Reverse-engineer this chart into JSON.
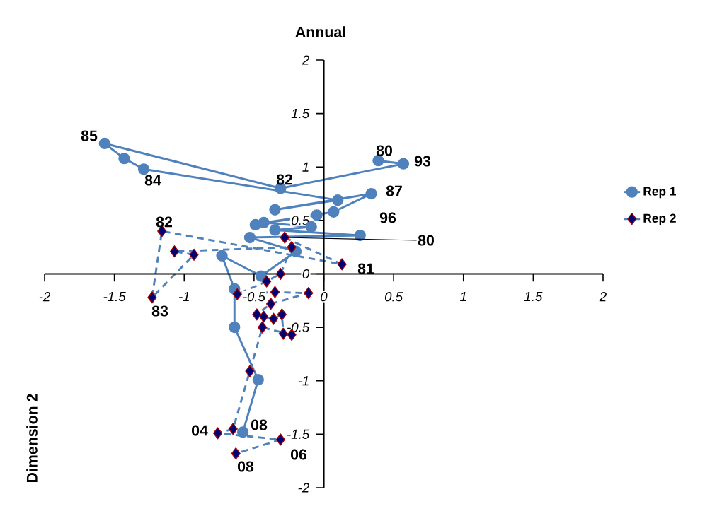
{
  "chart_data": {
    "type": "line",
    "title": "Annual",
    "ylabel": "Dimension 2",
    "xlim": [
      -2,
      2
    ],
    "ylim": [
      -2,
      2
    ],
    "xticks": [
      -2,
      -1.5,
      -1,
      -0.5,
      0,
      0.5,
      1,
      1.5,
      2
    ],
    "yticks": [
      -2,
      -1.5,
      -1,
      -0.5,
      0,
      0.5,
      1,
      1.5,
      2
    ],
    "grid": false,
    "legend": "right",
    "series": [
      {
        "name": "Rep 1",
        "color": "#4f81bd",
        "marker": "circle",
        "line_style": "solid",
        "x": [
          0.39,
          0.57,
          -0.31,
          -1.57,
          -1.43,
          -1.29,
          0.1,
          -0.35,
          0.34,
          0.07,
          -0.49,
          -0.05,
          -0.43,
          -0.09,
          -0.35,
          0.26,
          -0.53,
          -0.2,
          -0.45,
          -0.73,
          -0.64,
          -0.64,
          -0.47,
          -0.58
        ],
        "values": [
          1.06,
          1.03,
          0.8,
          1.22,
          1.08,
          0.98,
          0.69,
          0.6,
          0.75,
          0.58,
          0.46,
          0.55,
          0.48,
          0.44,
          0.41,
          0.36,
          0.34,
          0.21,
          -0.02,
          0.17,
          -0.14,
          -0.5,
          -0.99,
          -1.48
        ]
      },
      {
        "name": "Rep 2",
        "color": "#4f81bd",
        "marker": "diamond",
        "line_style": "dashed",
        "x": [
          -0.28,
          0.13,
          -1.16,
          -1.23,
          -0.93,
          -1.07,
          -0.23,
          -0.31,
          -0.41,
          -0.62,
          -0.35,
          -0.11,
          -0.38,
          -0.48,
          -0.43,
          -0.36,
          -0.3,
          -0.29,
          -0.23,
          -0.44,
          -0.53,
          -0.65,
          -0.76,
          -0.31,
          -0.63
        ],
        "values": [
          0.34,
          0.09,
          0.4,
          -0.22,
          0.18,
          0.21,
          0.25,
          0.0,
          -0.07,
          -0.19,
          -0.17,
          -0.18,
          -0.28,
          -0.38,
          -0.4,
          -0.42,
          -0.38,
          -0.56,
          -0.57,
          -0.5,
          -0.91,
          -1.45,
          -1.49,
          -1.55,
          -1.68
        ]
      }
    ],
    "annotations": [
      "80",
      "93",
      "82",
      "85",
      "84",
      "87",
      "96",
      {
        "text": "80",
        "x": -0.28,
        "y": 0.34
      },
      "81",
      "82",
      "83",
      "04",
      "08",
      "06",
      "08"
    ]
  }
}
